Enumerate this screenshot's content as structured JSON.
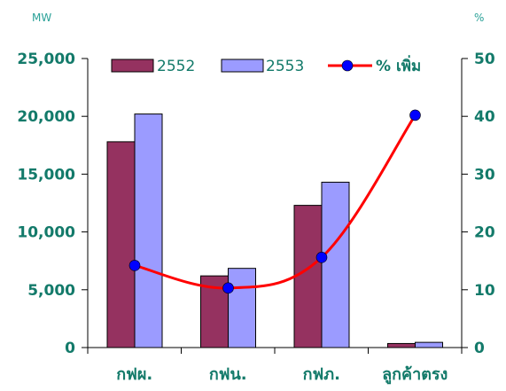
{
  "chart_data": {
    "type": "bar",
    "categories": [
      "กฟผ.",
      "กฟน.",
      "กฟภ.",
      "ลูกค้าตรง"
    ],
    "series": [
      {
        "name": "2552",
        "axis": "left",
        "mark": "bar",
        "values": [
          17800,
          6200,
          12300,
          350
        ]
      },
      {
        "name": "2553",
        "axis": "left",
        "mark": "bar",
        "values": [
          20200,
          6850,
          14300,
          450
        ]
      },
      {
        "name": "% เพิ่ม",
        "axis": "right",
        "mark": "line",
        "values": [
          14.2,
          10.3,
          15.6,
          40.2
        ]
      }
    ],
    "y_left": {
      "unit_label": "MW",
      "range": [
        0,
        25000
      ],
      "ticks": [
        "0",
        "5,000",
        "10,000",
        "15,000",
        "20,000",
        "25,000"
      ]
    },
    "y_right": {
      "unit_label": "%",
      "range": [
        0,
        50
      ],
      "ticks": [
        "0",
        "10",
        "20",
        "30",
        "40",
        "50"
      ]
    },
    "grid": false,
    "legend_position": "top",
    "colors": {
      "series_2552": "#953260",
      "series_2553": "#9b9bff",
      "pct_line": "#ff0000",
      "pct_marker": "#0000ff",
      "axis": "#000000",
      "tick_text": "#137a6a",
      "unit_text": "#2aa198"
    }
  }
}
